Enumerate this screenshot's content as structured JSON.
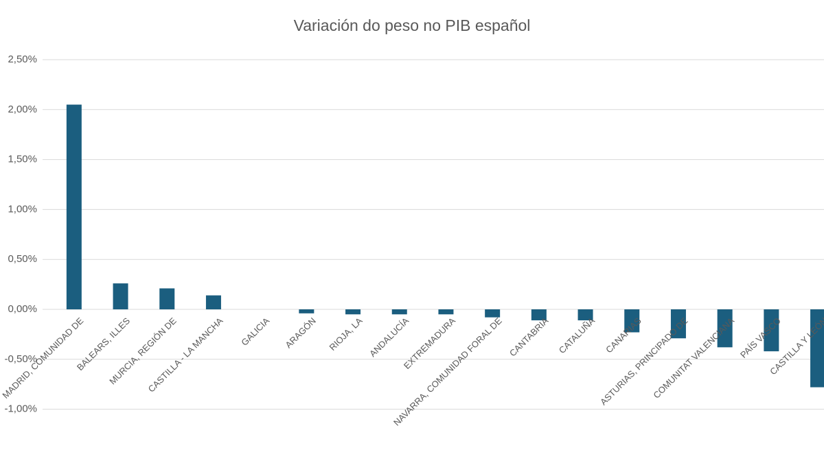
{
  "chart_data": {
    "type": "bar",
    "title": "Variación do peso no PIB español",
    "categories": [
      "MADRID, COMUNIDAD DE",
      "BALEARS, ILLES",
      "MURCIA, REGIÓN DE",
      "CASTILLA - LA MANCHA",
      "GALICIA",
      "ARAGÓN",
      "RIOJA, LA",
      "ANDALUCÍA",
      "EXTREMADURA",
      "NAVARRA, COMUNIDAD FORAL DE",
      "CANTABRIA",
      "CATALUÑA",
      "CANARIAS",
      "ASTURIAS, PRINCIPADO DE",
      "COMUNITAT VALENCIANA",
      "PAÍS VASCO",
      "CASTILLA Y LEÓN"
    ],
    "values": [
      2.05,
      0.26,
      0.21,
      0.14,
      0,
      -0.04,
      -0.05,
      -0.05,
      -0.05,
      -0.08,
      -0.11,
      -0.11,
      -0.23,
      -0.29,
      -0.38,
      -0.42,
      -0.78
    ],
    "color": "#1b5e7f",
    "ylim": [
      -1.5,
      2.5
    ],
    "yticks": [
      {
        "value": -1,
        "label": "-1,00%"
      },
      {
        "value": -0.5,
        "label": "-0,50%"
      },
      {
        "value": 0,
        "label": "0,00%"
      },
      {
        "value": 0.5,
        "label": "0,50%"
      },
      {
        "value": 1,
        "label": "1,00%"
      },
      {
        "value": 1.5,
        "label": "1,50%"
      },
      {
        "value": 2,
        "label": "2,00%"
      },
      {
        "value": 2.5,
        "label": "2,50%"
      }
    ],
    "grid": true
  }
}
